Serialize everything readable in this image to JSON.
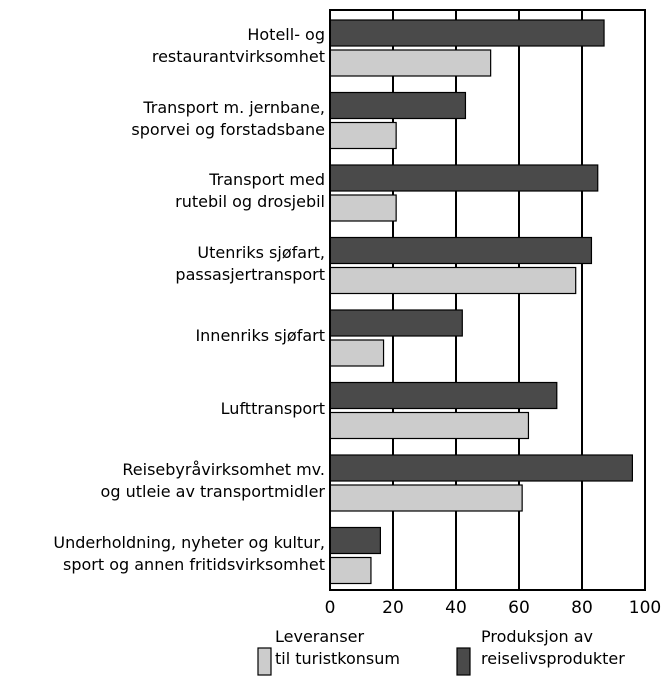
{
  "chart_data": {
    "type": "barh",
    "categories": [
      "Hotell- og\nrestaurantvirksomhet",
      "Transport m. jernbane,\nsporvei og forstadsbane",
      "Transport med\nrutebil og drosjebil",
      "Utenriks sjøfart,\npassasjertransport",
      "Innenriks sjøfart",
      "Lufttransport",
      "Reisebyråvirksomhet mv.\nog utleie av transportmidler",
      "Underholdning, nyheter og kultur,\nsport og annen fritidsvirksomhet"
    ],
    "series": [
      {
        "name": "Produksjon av\nreiselivsprodukter",
        "color": "#4a4a4a",
        "values": [
          87,
          43,
          85,
          83,
          42,
          72,
          96,
          16
        ]
      },
      {
        "name": "Leveranser\ntil turistkonsum",
        "color": "#cccccc",
        "values": [
          51,
          21,
          21,
          78,
          17,
          63,
          61,
          13
        ]
      }
    ],
    "xlim": [
      0,
      100
    ],
    "xticks": [
      0,
      20,
      40,
      60,
      80,
      100
    ],
    "grid": true
  }
}
